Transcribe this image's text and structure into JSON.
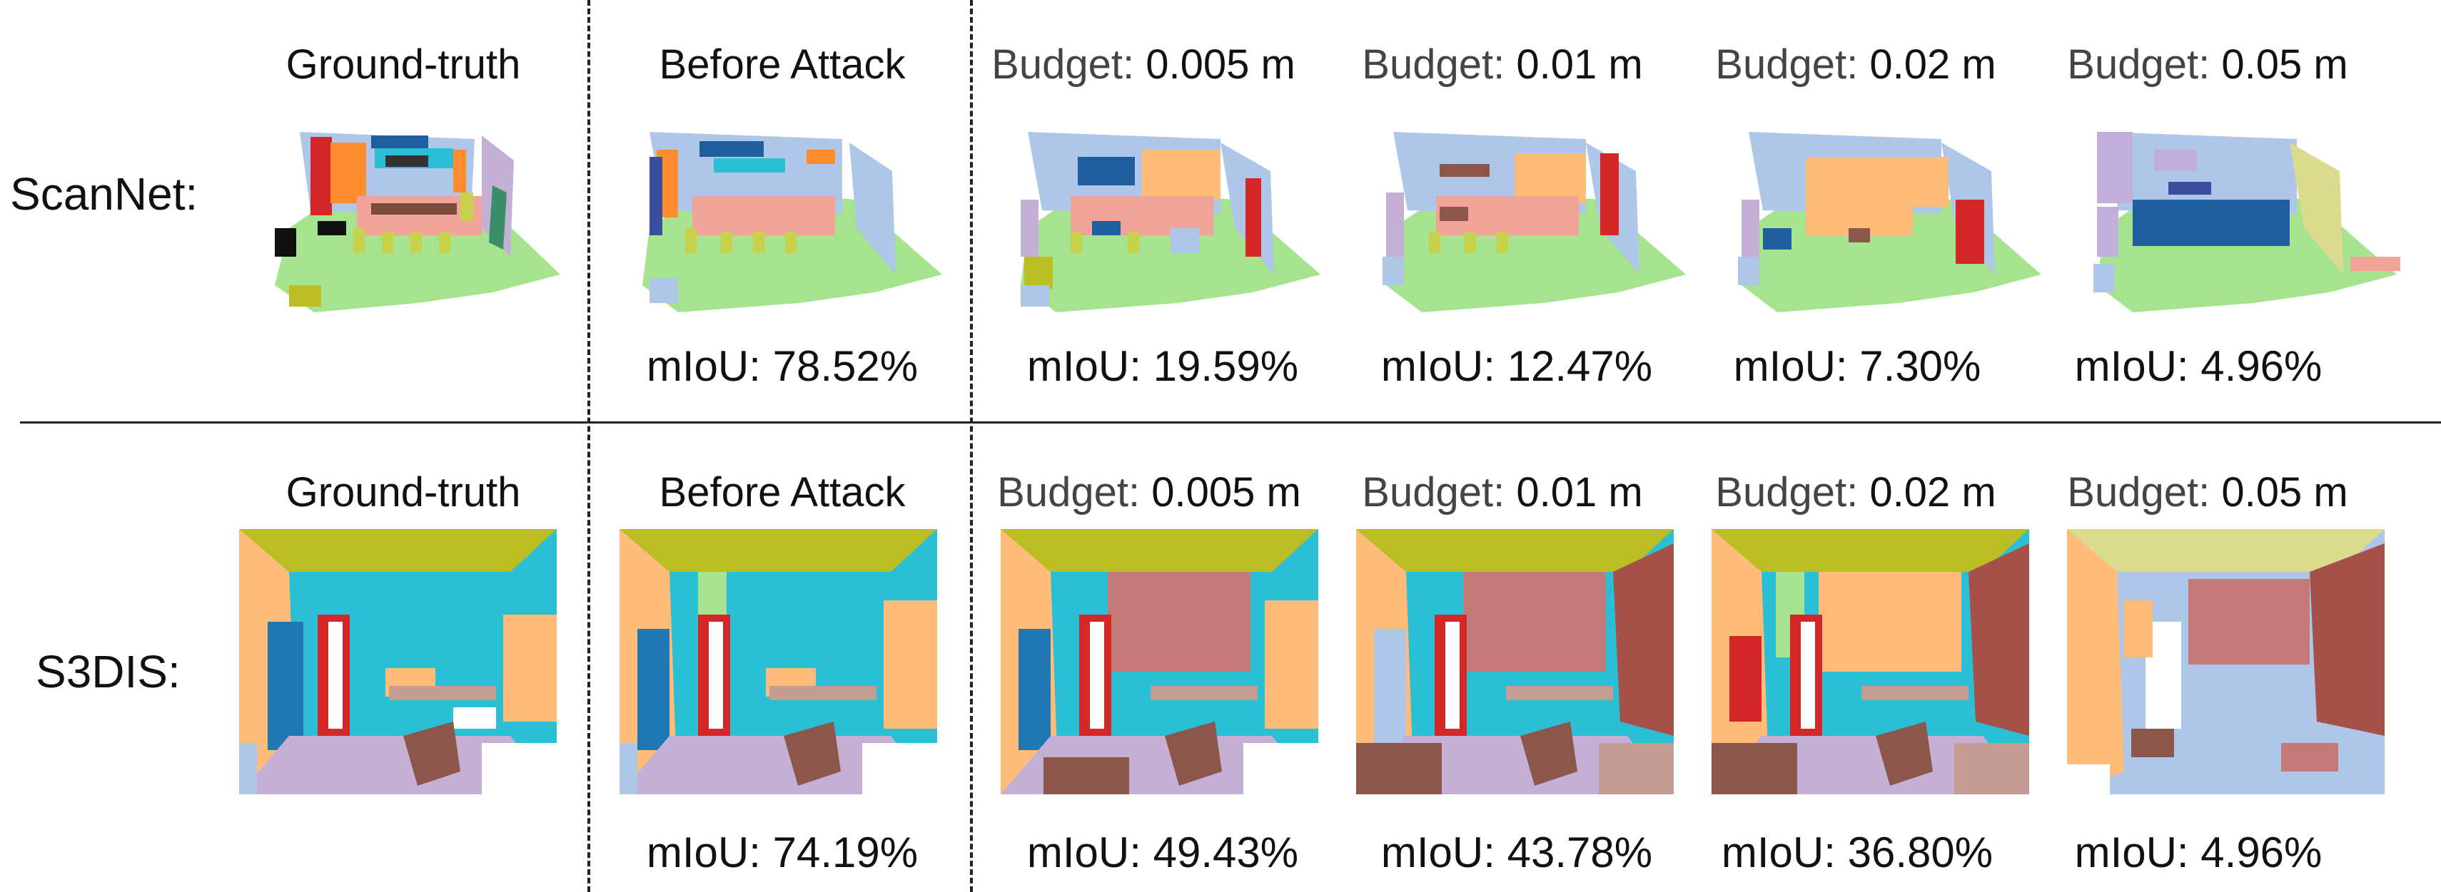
{
  "rows": [
    {
      "label": "ScanNet:",
      "columns": [
        {
          "title": "Ground-truth",
          "metric": ""
        },
        {
          "title": "Before Attack",
          "metric": "mIoU: 78.52%"
        },
        {
          "title_word": "Budget:",
          "title_value": "0.005 m",
          "metric": "mIoU: 19.59%"
        },
        {
          "title_word": "Budget:",
          "title_value": "0.01 m",
          "metric": "mIoU: 12.47%"
        },
        {
          "title_word": "Budget:",
          "title_value": "0.02 m",
          "metric": "mIoU: 7.30%"
        },
        {
          "title_word": "Budget:",
          "title_value": "0.05 m",
          "metric": "mIoU: 4.96%"
        }
      ]
    },
    {
      "label": "S3DIS:",
      "columns": [
        {
          "title": "Ground-truth",
          "metric": ""
        },
        {
          "title": "Before Attack",
          "metric": "mIoU: 74.19%"
        },
        {
          "title_word": "Budget:",
          "title_value": "0.005 m",
          "metric": "mIoU: 49.43%"
        },
        {
          "title_word": "Budget:",
          "title_value": "0.01 m",
          "metric": "mIoU: 43.78%"
        },
        {
          "title_word": "Budget:",
          "title_value": "0.02 m",
          "metric": "mIoU: 36.80%"
        },
        {
          "title_word": "Budget:",
          "title_value": "0.05 m",
          "metric": "mIoU: 4.96%"
        }
      ]
    }
  ],
  "colors": {
    "floor": "#a6e38f",
    "table": "#f1a39a",
    "chair": "#c8d14a",
    "wall_blue": "#aec7e8",
    "wall_lav": "#c5b0d5",
    "red": "#d62728",
    "orange": "#ff8c2e",
    "dark_blue": "#1f5f9f",
    "cyan": "#2bbfd6",
    "ceiling": "#bcbd22",
    "peach": "#ffbb78",
    "brown": "#8c564b",
    "rose": "#c47a78",
    "lilac": "#c2aedb",
    "khaki": "#dbdb8d",
    "tan": "#c49c94"
  }
}
